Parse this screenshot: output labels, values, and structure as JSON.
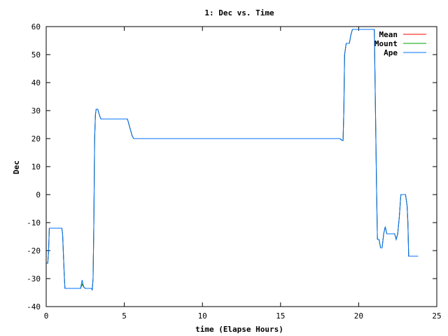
{
  "chart_data": {
    "type": "line",
    "title": "1: Dec vs. Time",
    "xlabel": "time (Elapse Hours)",
    "ylabel": "Dec",
    "xlim": [
      0,
      25
    ],
    "ylim": [
      -40,
      60
    ],
    "x_ticks": [
      0,
      5,
      10,
      15,
      20,
      25
    ],
    "y_ticks": [
      -40,
      -30,
      -20,
      -10,
      0,
      10,
      20,
      30,
      40,
      50,
      60
    ],
    "grid": false,
    "legend_position": "top-right",
    "series": [
      {
        "name": "Mean",
        "color": "#ff0000",
        "x": [
          0.0,
          0.1,
          0.15,
          0.2,
          1.0,
          1.05,
          1.1,
          1.15,
          1.2,
          2.0,
          2.2,
          2.3,
          2.4,
          2.5,
          2.9,
          2.95,
          3.0,
          3.05,
          3.1,
          3.15,
          3.2,
          3.3,
          3.4,
          3.5,
          3.6,
          5.2,
          5.3,
          5.4,
          5.5,
          5.6,
          5.7,
          12.8,
          12.9,
          15.8,
          15.9,
          18.8,
          18.9,
          19.0,
          19.05,
          19.1,
          19.2,
          19.4,
          19.5,
          19.6,
          19.7,
          19.8,
          21.0,
          21.05,
          21.1,
          21.15,
          21.2,
          21.3,
          21.4,
          21.5,
          21.6,
          21.7,
          21.8,
          22.3,
          22.4,
          22.5,
          22.6,
          22.7,
          22.8,
          22.9,
          23.0,
          23.1,
          23.15,
          23.2,
          23.8
        ],
        "y": [
          -24.5,
          -24.5,
          -20.5,
          -12,
          -12,
          -14,
          -21,
          -28,
          -33.5,
          -33.5,
          -33.5,
          -32,
          -33,
          -33.5,
          -33.5,
          -33.8,
          -30,
          -10,
          20,
          28.5,
          30.5,
          30.5,
          28.5,
          27,
          27,
          27,
          25,
          23,
          21,
          20,
          20,
          20,
          20,
          20,
          20,
          20,
          19.5,
          19.3,
          30,
          50,
          54,
          54,
          57,
          59,
          59,
          59,
          59,
          40,
          20,
          0,
          -16,
          -16,
          -19,
          -19,
          -14,
          -11.5,
          -14,
          -14,
          -16,
          -14,
          -8,
          0,
          0,
          0,
          0,
          -4,
          -10,
          -22,
          -22
        ]
      },
      {
        "name": "Mount",
        "color": "#00a000",
        "x": [
          0.0,
          0.1,
          0.15,
          0.2,
          1.0,
          1.05,
          1.1,
          1.15,
          1.2,
          2.0,
          2.2,
          2.3,
          2.4,
          2.5,
          2.9,
          2.95,
          3.0,
          3.05,
          3.1,
          3.15,
          3.2,
          3.3,
          3.4,
          3.5,
          3.6,
          5.2,
          5.3,
          5.4,
          5.5,
          5.6,
          5.7,
          18.8,
          18.9,
          19.0,
          19.05,
          19.1,
          19.2,
          19.4,
          19.5,
          19.6,
          19.7,
          19.8,
          21.0,
          21.05,
          21.1,
          21.15,
          21.2,
          21.3,
          21.4,
          21.5,
          21.6,
          21.7,
          21.8,
          22.3,
          22.4,
          22.5,
          22.6,
          22.7,
          22.8,
          22.9,
          23.0,
          23.1,
          23.15,
          23.2,
          23.8
        ],
        "y": [
          -24.5,
          -24.5,
          -20.5,
          -12,
          -12,
          -14,
          -21,
          -28,
          -33.5,
          -33.5,
          -33.5,
          -32,
          -33,
          -33.5,
          -33.5,
          -33.8,
          -30,
          -10,
          20,
          28.5,
          30.5,
          30.5,
          28.5,
          27,
          27,
          27,
          25,
          23,
          21,
          20,
          20,
          20,
          19.5,
          19.3,
          30,
          50,
          54,
          54,
          57,
          59,
          59,
          59,
          59,
          40,
          20,
          0,
          -16,
          -16,
          -19,
          -19,
          -14,
          -11.5,
          -14,
          -14,
          -16,
          -14,
          -8,
          0,
          0,
          0,
          0,
          -4,
          -10,
          -22,
          -22
        ]
      },
      {
        "name": "Ape",
        "color": "#0070ff",
        "x": [
          0.0,
          0.1,
          0.15,
          0.2,
          1.0,
          1.05,
          1.1,
          1.15,
          1.2,
          2.0,
          2.2,
          2.3,
          2.4,
          2.5,
          2.9,
          2.95,
          3.0,
          3.05,
          3.1,
          3.15,
          3.2,
          3.3,
          3.4,
          3.5,
          3.6,
          5.2,
          5.3,
          5.4,
          5.5,
          5.6,
          5.7,
          18.8,
          18.9,
          19.0,
          19.05,
          19.1,
          19.2,
          19.4,
          19.5,
          19.6,
          19.7,
          19.8,
          21.0,
          21.05,
          21.1,
          21.15,
          21.2,
          21.3,
          21.4,
          21.5,
          21.6,
          21.7,
          21.8,
          22.3,
          22.4,
          22.5,
          22.6,
          22.7,
          22.8,
          22.9,
          23.0,
          23.1,
          23.15,
          23.2,
          23.8
        ],
        "y": [
          -24.5,
          -24.5,
          -20.5,
          -12,
          -12,
          -14,
          -21,
          -28,
          -33.5,
          -33.5,
          -33.5,
          -30.5,
          -33,
          -33.5,
          -33.5,
          -34.2,
          -30,
          -10,
          20,
          28.5,
          30.5,
          30.5,
          28.5,
          27,
          27,
          27,
          25,
          23,
          21,
          20,
          20,
          20,
          19.5,
          19.3,
          30,
          50,
          54,
          54,
          57,
          59,
          59,
          59,
          59,
          40,
          20,
          0,
          -16,
          -16,
          -19,
          -19,
          -14,
          -11.5,
          -14,
          -14,
          -16,
          -14,
          -8,
          0,
          0,
          0,
          0,
          -4,
          -10,
          -22,
          -22
        ]
      }
    ]
  }
}
